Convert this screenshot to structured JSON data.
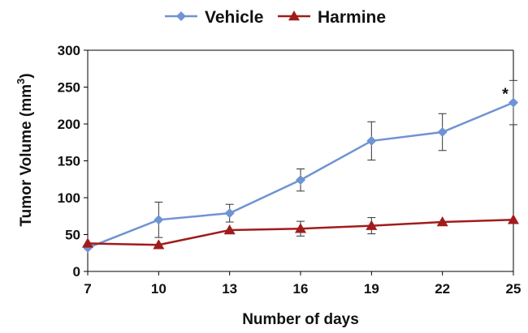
{
  "chart_data": {
    "type": "line",
    "title": "",
    "xlabel": "Number of days",
    "ylabel_main": "Tumor Volume (mm",
    "ylabel_sup": "3",
    "ylabel_close": ")",
    "x": [
      7,
      10,
      13,
      16,
      19,
      22,
      25
    ],
    "x_ticks": [
      "7",
      "10",
      "13",
      "16",
      "19",
      "22",
      "25"
    ],
    "ylim": [
      0,
      300
    ],
    "y_ticks": [
      "0",
      "50",
      "100",
      "150",
      "200",
      "250",
      "300"
    ],
    "y_tick_values": [
      0,
      50,
      100,
      150,
      200,
      250,
      300
    ],
    "grid": false,
    "legend_position": "top",
    "series": [
      {
        "name": "Vehicle",
        "color": "#6f93d3",
        "marker": "diamond-icon",
        "values": [
          32,
          70,
          79,
          124,
          177,
          189,
          229
        ],
        "error": [
          0,
          24,
          12,
          15,
          26,
          25,
          30
        ]
      },
      {
        "name": "Harmine",
        "color": "#a01c1c",
        "marker": "triangle-icon",
        "values": [
          38,
          36,
          56,
          58,
          62,
          67,
          70
        ],
        "error": [
          0,
          0,
          0,
          10,
          11,
          0,
          0
        ]
      }
    ],
    "annotations": [
      {
        "text": "*",
        "x": 25,
        "y": 229
      }
    ]
  }
}
